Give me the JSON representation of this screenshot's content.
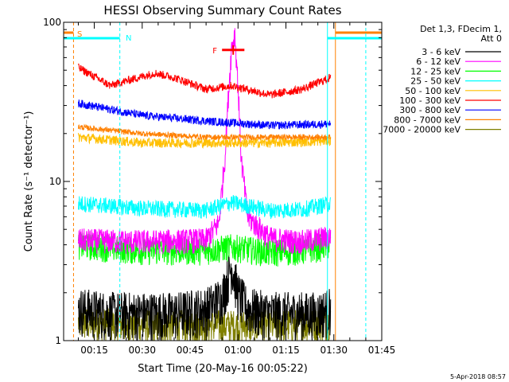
{
  "chart_data": {
    "type": "line",
    "title": "HESSI Observing Summary Count Rates",
    "xlabel": "Start Time (20-May-16 00:05:22)",
    "ylabel": "Count Rate (s⁻¹ detector⁻¹)",
    "yscale": "log",
    "ylim": [
      1,
      100
    ],
    "xlim_minutes": [
      5.4,
      105
    ],
    "x_ticks": [
      "00:15",
      "00:30",
      "00:45",
      "01:00",
      "01:15",
      "01:30",
      "01:45"
    ],
    "y_ticks": [
      "1",
      "10",
      "100"
    ],
    "legend_header": [
      "Det 1,3, FDecim 1,",
      "Att 0"
    ],
    "series": [
      {
        "name": "3 - 6 keV",
        "color": "#000000",
        "x": [
          10,
          20,
          30,
          40,
          50,
          55,
          58,
          60,
          63,
          70,
          80,
          85,
          89
        ],
        "values": [
          1.6,
          1.5,
          1.5,
          1.5,
          1.6,
          1.9,
          3.0,
          2.0,
          1.6,
          1.5,
          1.5,
          1.5,
          1.6
        ]
      },
      {
        "name": "6 - 12 keV",
        "color": "#ff00ff",
        "x": [
          10,
          30,
          50,
          54,
          56,
          57,
          58,
          59,
          60,
          61,
          63,
          70,
          80,
          89
        ],
        "values": [
          4.3,
          4.2,
          4.3,
          5.5,
          15,
          35,
          70,
          85,
          40,
          14,
          6,
          4.4,
          4.2,
          4.5
        ]
      },
      {
        "name": "12 - 25 keV",
        "color": "#00ff00",
        "x": [
          10,
          30,
          50,
          58,
          70,
          80,
          89
        ],
        "values": [
          4.0,
          3.7,
          3.7,
          3.9,
          3.6,
          3.7,
          4.0
        ]
      },
      {
        "name": "25 - 50 keV",
        "color": "#00ffff",
        "x": [
          10,
          30,
          50,
          58,
          70,
          80,
          89
        ],
        "values": [
          7.3,
          6.8,
          6.6,
          7.4,
          6.6,
          6.7,
          7.3
        ]
      },
      {
        "name": "50 - 100 keV",
        "color": "#ffbf00",
        "x": [
          10,
          30,
          50,
          70,
          89
        ],
        "values": [
          19,
          17.5,
          17.5,
          17.5,
          18
        ]
      },
      {
        "name": "100 - 300 keV",
        "color": "#ff0000",
        "x": [
          10,
          20,
          27,
          34,
          40,
          50,
          58,
          70,
          80,
          89
        ],
        "values": [
          52,
          40,
          44,
          48,
          45,
          38,
          40,
          35,
          38,
          45
        ]
      },
      {
        "name": "300 - 800 keV",
        "color": "#0000ff",
        "x": [
          10,
          30,
          50,
          70,
          89
        ],
        "values": [
          31,
          26,
          24,
          22.5,
          23
        ]
      },
      {
        "name": "800 - 7000 keV",
        "color": "#ff8000",
        "x": [
          10,
          30,
          50,
          70,
          89
        ],
        "values": [
          22,
          20,
          19,
          19,
          19
        ]
      },
      {
        "name": "7000 - 20000 keV",
        "color": "#808000",
        "x": [
          10,
          30,
          50,
          70,
          89
        ],
        "values": [
          1.3,
          1.25,
          1.25,
          1.25,
          1.3
        ]
      }
    ],
    "annotations": [
      {
        "label": "S",
        "color": "#ff8000"
      },
      {
        "label": "N",
        "color": "#00ffff"
      },
      {
        "label": "F",
        "color": "#ff0000"
      }
    ],
    "footer": "5-Apr-2018 08:57"
  }
}
